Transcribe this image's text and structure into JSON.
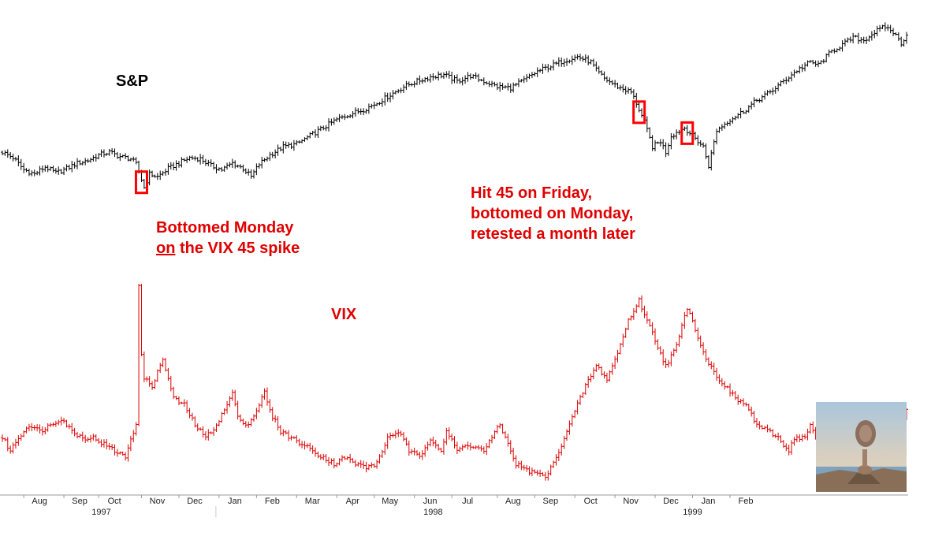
{
  "chart_data": {
    "type": "line",
    "style": "ohlc-bars",
    "panels": [
      {
        "name": "S&P",
        "color": "#000000",
        "y_axis": "none",
        "ylim": [
          890,
          1280
        ],
        "anchors": [
          [
            0,
            1030
          ],
          [
            4,
            1020
          ],
          [
            8,
            998
          ],
          [
            12,
            990
          ],
          [
            16,
            1003
          ],
          [
            20,
            992
          ],
          [
            24,
            1000
          ],
          [
            28,
            1010
          ],
          [
            32,
            1015
          ],
          [
            36,
            1025
          ],
          [
            40,
            1030
          ],
          [
            44,
            1022
          ],
          [
            48,
            1018
          ],
          [
            50,
            1008
          ],
          [
            52,
            980
          ],
          [
            53,
            965
          ],
          [
            55,
            990
          ],
          [
            58,
            985
          ],
          [
            62,
            1000
          ],
          [
            66,
            1010
          ],
          [
            70,
            1020
          ],
          [
            74,
            1018
          ],
          [
            78,
            1005
          ],
          [
            82,
            998
          ],
          [
            86,
            1010
          ],
          [
            90,
            1000
          ],
          [
            93,
            985
          ],
          [
            96,
            1008
          ],
          [
            100,
            1025
          ],
          [
            105,
            1040
          ],
          [
            110,
            1045
          ],
          [
            115,
            1060
          ],
          [
            120,
            1075
          ],
          [
            125,
            1090
          ],
          [
            130,
            1100
          ],
          [
            135,
            1108
          ],
          [
            140,
            1120
          ],
          [
            145,
            1135
          ],
          [
            150,
            1150
          ],
          [
            155,
            1160
          ],
          [
            160,
            1168
          ],
          [
            165,
            1172
          ],
          [
            170,
            1160
          ],
          [
            175,
            1170
          ],
          [
            180,
            1160
          ],
          [
            185,
            1150
          ],
          [
            190,
            1148
          ],
          [
            195,
            1162
          ],
          [
            200,
            1178
          ],
          [
            205,
            1188
          ],
          [
            210,
            1198
          ],
          [
            215,
            1205
          ],
          [
            220,
            1195
          ],
          [
            222,
            1180
          ],
          [
            225,
            1165
          ],
          [
            230,
            1150
          ],
          [
            235,
            1140
          ],
          [
            237,
            1120
          ],
          [
            240,
            1085
          ],
          [
            243,
            1040
          ],
          [
            246,
            1050
          ],
          [
            248,
            1030
          ],
          [
            250,
            1060
          ],
          [
            255,
            1075
          ],
          [
            258,
            1060
          ],
          [
            262,
            1040
          ],
          [
            264,
            1005
          ],
          [
            267,
            1070
          ],
          [
            272,
            1090
          ],
          [
            277,
            1105
          ],
          [
            282,
            1125
          ],
          [
            287,
            1140
          ],
          [
            292,
            1160
          ],
          [
            297,
            1180
          ],
          [
            302,
            1195
          ],
          [
            305,
            1190
          ],
          [
            310,
            1215
          ],
          [
            315,
            1230
          ],
          [
            318,
            1240
          ],
          [
            322,
            1235
          ],
          [
            326,
            1250
          ],
          [
            330,
            1260
          ],
          [
            333,
            1250
          ],
          [
            336,
            1230
          ],
          [
            338,
            1245
          ]
        ]
      },
      {
        "name": "VIX",
        "color": "#dd0000",
        "y_axis": "none",
        "ylim": [
          16,
          48
        ],
        "anchors": [
          [
            0,
            22
          ],
          [
            3,
            20
          ],
          [
            6,
            22
          ],
          [
            10,
            24
          ],
          [
            14,
            23
          ],
          [
            18,
            24
          ],
          [
            22,
            25
          ],
          [
            26,
            23
          ],
          [
            30,
            22
          ],
          [
            34,
            22
          ],
          [
            38,
            21
          ],
          [
            42,
            20
          ],
          [
            46,
            19
          ],
          [
            48,
            22
          ],
          [
            50,
            24
          ],
          [
            51,
            45
          ],
          [
            52,
            35
          ],
          [
            53,
            31
          ],
          [
            56,
            30
          ],
          [
            60,
            34
          ],
          [
            64,
            28
          ],
          [
            68,
            27
          ],
          [
            72,
            24
          ],
          [
            76,
            22
          ],
          [
            80,
            24
          ],
          [
            84,
            27
          ],
          [
            86,
            29
          ],
          [
            88,
            25
          ],
          [
            92,
            24
          ],
          [
            96,
            27
          ],
          [
            98,
            29
          ],
          [
            100,
            26
          ],
          [
            104,
            23
          ],
          [
            108,
            22
          ],
          [
            112,
            21
          ],
          [
            116,
            20
          ],
          [
            120,
            19
          ],
          [
            124,
            18
          ],
          [
            128,
            19
          ],
          [
            132,
            18
          ],
          [
            136,
            17.5
          ],
          [
            140,
            18
          ],
          [
            144,
            22
          ],
          [
            148,
            23
          ],
          [
            152,
            20
          ],
          [
            156,
            19
          ],
          [
            160,
            22
          ],
          [
            164,
            20
          ],
          [
            166,
            23
          ],
          [
            170,
            20
          ],
          [
            174,
            21
          ],
          [
            180,
            20
          ],
          [
            186,
            24
          ],
          [
            188,
            22
          ],
          [
            192,
            18
          ],
          [
            196,
            17
          ],
          [
            200,
            16.5
          ],
          [
            203,
            16
          ],
          [
            206,
            18
          ],
          [
            210,
            22
          ],
          [
            214,
            26
          ],
          [
            218,
            30
          ],
          [
            222,
            33
          ],
          [
            226,
            31
          ],
          [
            230,
            35
          ],
          [
            234,
            40
          ],
          [
            238,
            43
          ],
          [
            240,
            41
          ],
          [
            244,
            37
          ],
          [
            248,
            33
          ],
          [
            252,
            36
          ],
          [
            256,
            42
          ],
          [
            258,
            40
          ],
          [
            262,
            35
          ],
          [
            266,
            32
          ],
          [
            270,
            30
          ],
          [
            274,
            28
          ],
          [
            278,
            27
          ],
          [
            282,
            24
          ],
          [
            286,
            23
          ],
          [
            290,
            22
          ],
          [
            294,
            20
          ],
          [
            296,
            22
          ],
          [
            300,
            22
          ],
          [
            302,
            24
          ],
          [
            304,
            22
          ],
          [
            308,
            25
          ],
          [
            312,
            22
          ],
          [
            316,
            20
          ],
          [
            320,
            22
          ],
          [
            324,
            26
          ],
          [
            328,
            25
          ],
          [
            332,
            26
          ],
          [
            336,
            24
          ],
          [
            338,
            26
          ]
        ]
      }
    ],
    "x_ticks": [
      "Aug",
      "Sep",
      "Oct",
      "Nov",
      "Dec",
      "Jan",
      "Feb",
      "Mar",
      "Apr",
      "May",
      "Jun",
      "Jul",
      "Aug",
      "Sep",
      "Oct",
      "Nov",
      "Dec",
      "Jan",
      "Feb"
    ],
    "x_tick_bars": [
      8,
      23,
      36,
      52,
      66,
      81,
      95,
      110,
      125,
      139,
      154,
      168,
      185,
      199,
      214,
      229,
      244,
      258,
      272
    ],
    "years": [
      {
        "label": "1997",
        "at_bar": 37
      },
      {
        "label": "1998",
        "at_bar": 161
      },
      {
        "label": "1999",
        "at_bar": 258
      }
    ],
    "annotations": {
      "sp_label": "S&P",
      "vix_label": "VIX",
      "left_note_line1": "Bottomed Monday",
      "left_note_line2_underlined": "on",
      "left_note_line2_rest": " the VIX 45 spike",
      "right_note_line1": "Hit 45 on Friday,",
      "right_note_line2": "bottomed on Monday,",
      "right_note_line3": "retested a month later"
    },
    "highlight_bars": [
      52,
      238,
      256
    ],
    "highlight_color": "#ff0000",
    "grid": false
  }
}
